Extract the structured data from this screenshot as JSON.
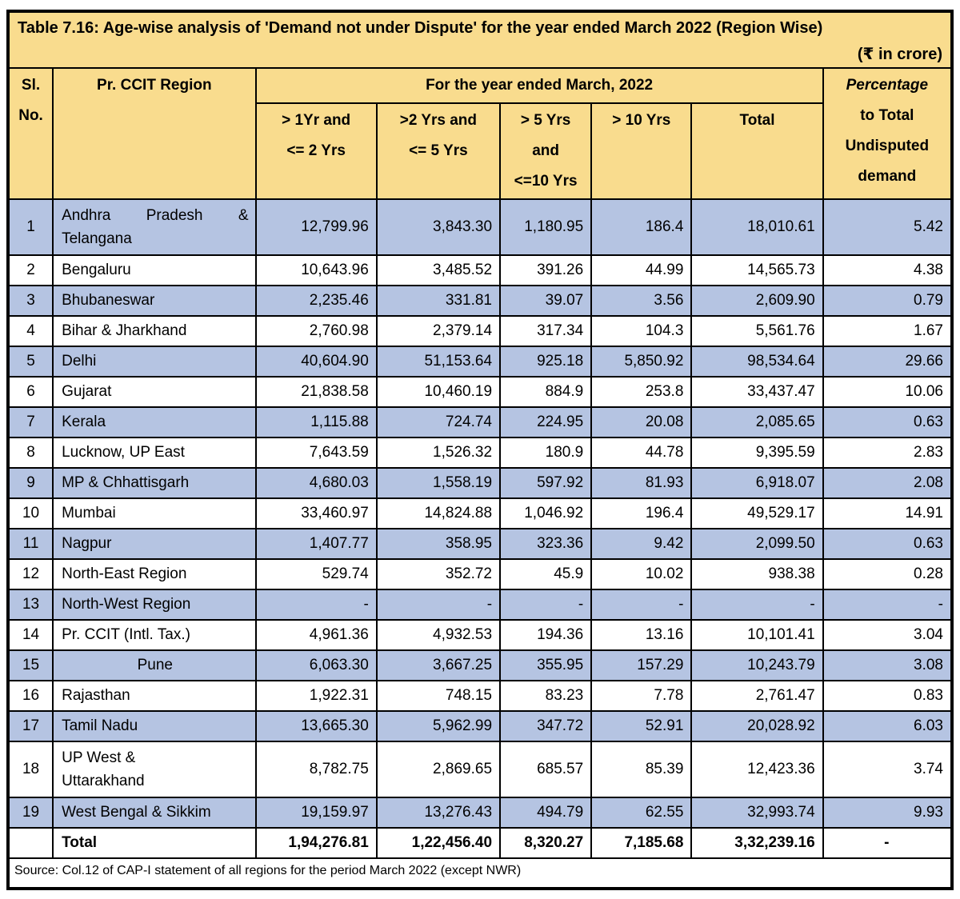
{
  "title": "Table 7.16: Age-wise analysis of 'Demand not under Dispute' for the year ended March 2022 (Region Wise)",
  "unit_note": "(₹ in crore)",
  "colors": {
    "header_bg": "#f9dc8e",
    "shaded_row_bg": "#b5c4e2",
    "plain_row_bg": "#ffffff",
    "border": "#000000"
  },
  "table": {
    "headers": {
      "sl_line1": "Sl.",
      "sl_line2": "No.",
      "region": "Pr. CCIT Region",
      "year_group": "For the year ended March, 2022",
      "c1_l1": "> 1Yr and",
      "c1_l2": "<= 2 Yrs",
      "c2_l1": ">2 Yrs and",
      "c2_l2": "<= 5 Yrs",
      "c3_l1": "> 5 Yrs",
      "c3_l2": "and",
      "c3_l3": "<=10 Yrs",
      "c4_l1": "> 10 Yrs",
      "c5_l1": "Total",
      "pct_line1": "Percentage",
      "pct_line2": "to Total",
      "pct_line3": "Undisputed",
      "pct_line4": "demand"
    },
    "rows": [
      {
        "sl": "1",
        "region": "Andhra Pradesh & Telangana",
        "values": [
          "12,799.96",
          "3,843.30",
          "1,180.95",
          "186.4",
          "18,010.61",
          "5.42"
        ],
        "shaded": true,
        "tall": true,
        "justify": true
      },
      {
        "sl": "2",
        "region": "Bengaluru",
        "values": [
          "10,643.96",
          "3,485.52",
          "391.26",
          "44.99",
          "14,565.73",
          "4.38"
        ],
        "shaded": false
      },
      {
        "sl": "3",
        "region": "Bhubaneswar",
        "values": [
          "2,235.46",
          "331.81",
          "39.07",
          "3.56",
          "2,609.90",
          "0.79"
        ],
        "shaded": true
      },
      {
        "sl": "4",
        "region": "Bihar & Jharkhand",
        "values": [
          "2,760.98",
          "2,379.14",
          "317.34",
          "104.3",
          "5,561.76",
          "1.67"
        ],
        "shaded": false
      },
      {
        "sl": "5",
        "region": "Delhi",
        "values": [
          "40,604.90",
          "51,153.64",
          "925.18",
          "5,850.92",
          "98,534.64",
          "29.66"
        ],
        "shaded": true
      },
      {
        "sl": "6",
        "region": "Gujarat",
        "values": [
          "21,838.58",
          "10,460.19",
          "884.9",
          "253.8",
          "33,437.47",
          "10.06"
        ],
        "shaded": false
      },
      {
        "sl": "7",
        "region": "Kerala",
        "values": [
          "1,115.88",
          "724.74",
          "224.95",
          "20.08",
          "2,085.65",
          "0.63"
        ],
        "shaded": true
      },
      {
        "sl": "8",
        "region": "Lucknow, UP East",
        "values": [
          "7,643.59",
          "1,526.32",
          "180.9",
          "44.78",
          "9,395.59",
          "2.83"
        ],
        "shaded": false
      },
      {
        "sl": "9",
        "region": "MP & Chhattisgarh",
        "values": [
          "4,680.03",
          "1,558.19",
          "597.92",
          "81.93",
          "6,918.07",
          "2.08"
        ],
        "shaded": true
      },
      {
        "sl": "10",
        "region": "Mumbai",
        "values": [
          "33,460.97",
          "14,824.88",
          "1,046.92",
          "196.4",
          "49,529.17",
          "14.91"
        ],
        "shaded": false
      },
      {
        "sl": "11",
        "region": "Nagpur",
        "values": [
          "1,407.77",
          "358.95",
          "323.36",
          "9.42",
          "2,099.50",
          "0.63"
        ],
        "shaded": true
      },
      {
        "sl": "12",
        "region": "North-East Region",
        "values": [
          "529.74",
          "352.72",
          "45.9",
          "10.02",
          "938.38",
          "0.28"
        ],
        "shaded": false
      },
      {
        "sl": "13",
        "region": "North-West Region",
        "values": [
          "-",
          "-",
          "-",
          "-",
          "-",
          "-"
        ],
        "shaded": true
      },
      {
        "sl": "14",
        "region": "Pr. CCIT (Intl. Tax.)",
        "values": [
          "4,961.36",
          "4,932.53",
          "194.36",
          "13.16",
          "10,101.41",
          "3.04"
        ],
        "shaded": false
      },
      {
        "sl": "15",
        "region": "Pune",
        "values": [
          "6,063.30",
          "3,667.25",
          "355.95",
          "157.29",
          "10,243.79",
          "3.08"
        ],
        "shaded": true,
        "region_center": true
      },
      {
        "sl": "16",
        "region": "Rajasthan",
        "values": [
          "1,922.31",
          "748.15",
          "83.23",
          "7.78",
          "2,761.47",
          "0.83"
        ],
        "shaded": false
      },
      {
        "sl": "17",
        "region": "Tamil Nadu",
        "values": [
          "13,665.30",
          "5,962.99",
          "347.72",
          "52.91",
          "20,028.92",
          "6.03"
        ],
        "shaded": true
      },
      {
        "sl": "18",
        "region": "UP West &\nUttarakhand",
        "values": [
          "8,782.75",
          "2,869.65",
          "685.57",
          "85.39",
          "12,423.36",
          "3.74"
        ],
        "shaded": false,
        "tall": true
      },
      {
        "sl": "19",
        "region": "West Bengal & Sikkim",
        "values": [
          "19,159.97",
          "13,276.43",
          "494.79",
          "62.55",
          "32,993.74",
          "9.93"
        ],
        "shaded": true
      },
      {
        "sl": "",
        "region": "Total",
        "values": [
          "1,94,276.81",
          "1,22,456.40",
          "8,320.27",
          "7,185.68",
          "3,32,239.16",
          "-"
        ],
        "shaded": false,
        "bold": true,
        "pct_center": true
      }
    ]
  },
  "source_note": "Source: Col.12 of CAP-I statement of all regions for the period March 2022 (except NWR)"
}
